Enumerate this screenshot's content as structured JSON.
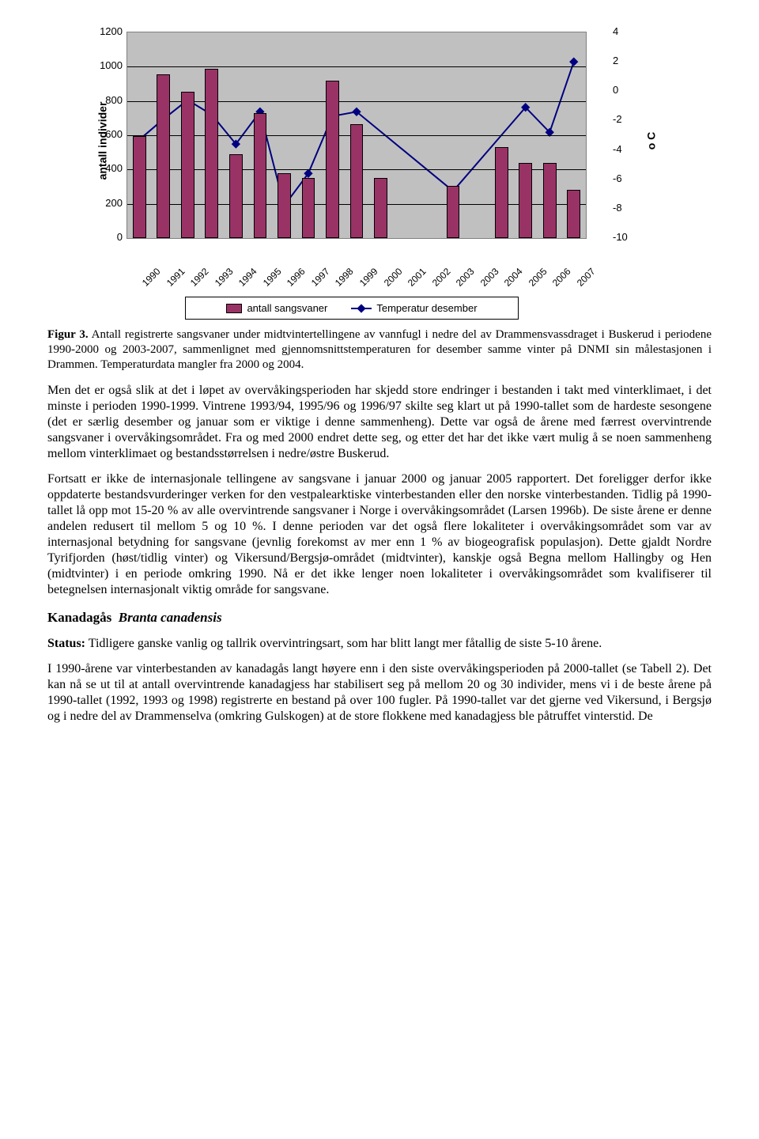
{
  "chart": {
    "type": "bar+line",
    "background_color": "#c0c0c0",
    "grid_color": "#000000",
    "left_axis": {
      "title": "antall individer",
      "min": 0,
      "max": 1200,
      "step": 200,
      "ticks": [
        "0",
        "200",
        "400",
        "600",
        "800",
        "1000",
        "1200"
      ]
    },
    "right_axis": {
      "title": "o C",
      "min": -10,
      "max": 4,
      "step": 2,
      "ticks": [
        "-10",
        "-8",
        "-6",
        "-4",
        "-2",
        "0",
        "2",
        "4"
      ]
    },
    "categories": [
      "1990",
      "1991",
      "1992",
      "1993",
      "1994",
      "1995",
      "1996",
      "1997",
      "1998",
      "1999",
      "2000",
      "2001",
      "2002",
      "2003",
      "2003",
      "2004",
      "2005",
      "2006",
      "2007"
    ],
    "bars": {
      "color": "#993366",
      "values": [
        595,
        955,
        855,
        990,
        490,
        730,
        380,
        350,
        920,
        665,
        350,
        0,
        0,
        305,
        0,
        530,
        440,
        440,
        280
      ]
    },
    "line": {
      "color": "#000080",
      "marker_color": "#000080",
      "values": [
        -3.3,
        -1.9,
        -0.6,
        -1.6,
        -3.6,
        -1.4,
        -7.8,
        -5.6,
        -1.7,
        -1.4,
        null,
        null,
        null,
        -6.8,
        null,
        null,
        -1.1,
        -2.8,
        2.0
      ]
    },
    "legend": {
      "bar_label": "antall sangsvaner",
      "line_label": "Temperatur desember"
    }
  },
  "caption": {
    "label": "Figur 3.",
    "text": "Antall registrerte sangsvaner under midtvintertellingene av vannfugl i nedre del av Drammensvassdraget i Buskerud i periodene 1990-2000 og 2003-2007, sammenlignet med gjennomsnittstemperaturen for desember samme vinter på DNMI sin målestasjonen i Drammen. Temperaturdata mangler fra 2000 og 2004."
  },
  "para1": "Men det er også slik at det i løpet av overvåkingsperioden har skjedd store endringer i bestanden i takt med vinterklimaet, i det minste i perioden 1990-1999. Vintrene 1993/94, 1995/96 og 1996/97 skilte seg klart ut på 1990-tallet som de hardeste sesongene (det er særlig desember og januar som er viktige i denne sammenheng). Dette var også de årene med færrest overvintrende sangsvaner i overvåkingsområdet. Fra og med 2000 endret dette seg, og etter det har det ikke vært mulig å se noen sammenheng mellom vinterklimaet og bestandsstørrelsen i nedre/østre Buskerud.",
  "para2": "Fortsatt er ikke de internasjonale tellingene av sangsvane i januar 2000 og januar 2005 rapportert. Det foreligger derfor ikke oppdaterte bestandsvurderinger verken for den vestpalearktiske vinterbestanden eller den norske vinterbestanden. Tidlig på 1990-tallet lå opp mot 15-20 % av alle overvintrende sangsvaner i Norge i overvåkingsområdet (Larsen 1996b). De siste årene er denne andelen redusert til mellom 5 og 10 %. I denne perioden var det også flere lokaliteter i overvåkingsområdet som var av internasjonal betydning for sangsvane (jevnlig forekomst av mer enn 1 % av biogeografisk populasjon). Dette gjaldt Nordre Tyrifjorden (høst/tidlig vinter) og Vikersund/Bergsjø-området (midtvinter), kanskje også Begna mellom Hallingby og Hen (midtvinter) i en periode omkring 1990. Nå er det ikke lenger noen lokaliteter i overvåkingsområdet som kvalifiserer til betegnelsen internasjonalt viktig område for sangsvane.",
  "species": {
    "common": "Kanadagås",
    "latin": "Branta canadensis"
  },
  "status": {
    "label": "Status:",
    "text": "Tidligere ganske vanlig og tallrik overvintringsart, som har blitt langt mer fåtallig de siste 5-10 årene."
  },
  "para3": "I 1990-årene var vinterbestanden av kanadagås langt høyere enn i den siste overvåkingsperioden på 2000-tallet (se Tabell 2). Det kan nå se ut til at antall overvintrende kanadagjess har stabilisert seg på mellom 20 og 30 individer, mens vi i de beste årene på 1990-tallet (1992, 1993 og 1998) registrerte en bestand på over 100 fugler. På 1990-tallet var det gjerne ved Vikersund, i Bergsjø og i nedre del av Drammenselva (omkring Gulskogen) at de store flokkene med kanadagjess ble påtruffet vinterstid. De"
}
